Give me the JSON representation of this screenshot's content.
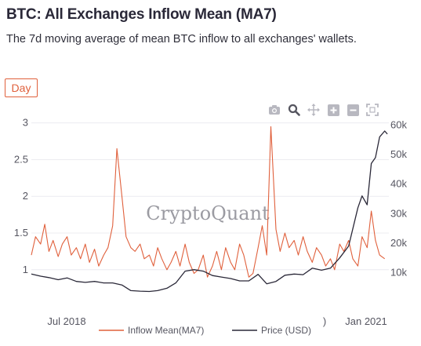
{
  "header": {
    "title": "BTC: All Exchanges Inflow Mean (MA7)",
    "subtitle": "The 7d moving average of mean BTC inflow to all exchanges' wallets."
  },
  "controls": {
    "interval_label": "Day"
  },
  "toolbar": {
    "icons": [
      "camera-icon",
      "zoom-icon",
      "pan-icon",
      "zoom-in-icon",
      "zoom-out-icon",
      "autoscale-icon"
    ]
  },
  "watermark": "CryptoQuant",
  "colors": {
    "inflow": "#e0603c",
    "price": "#2a2838",
    "accent": "#e0603c"
  },
  "chart_data": {
    "type": "line",
    "x_tick_labels": [
      "Jul 2018",
      "Jan 2021"
    ],
    "x_tick_partial": ")",
    "y_left": {
      "ticks": [
        1,
        1.5,
        2,
        2.5,
        3
      ],
      "tick_labels": [
        "1",
        "1.5",
        "2",
        "2.5",
        "3"
      ],
      "range": [
        0.72,
        3.05
      ]
    },
    "y_right": {
      "ticks": [
        10000,
        20000,
        30000,
        40000,
        50000,
        60000
      ],
      "tick_labels": [
        "10k",
        "20k",
        "30k",
        "40k",
        "50k",
        "60k"
      ],
      "range": [
        4000,
        62000
      ]
    },
    "x_range": [
      "2018-01-01",
      "2021-04-15"
    ],
    "legend_position": "bottom",
    "grid": true,
    "series": [
      {
        "name": "Inflow Mean(MA7)",
        "axis": "left",
        "color": "#e0603c",
        "x": [
          "2018-01-01",
          "2018-01-15",
          "2018-02-01",
          "2018-02-15",
          "2018-03-01",
          "2018-03-15",
          "2018-04-01",
          "2018-04-15",
          "2018-05-01",
          "2018-05-15",
          "2018-06-01",
          "2018-06-15",
          "2018-07-01",
          "2018-07-15",
          "2018-08-01",
          "2018-08-15",
          "2018-09-01",
          "2018-09-15",
          "2018-10-01",
          "2018-10-15",
          "2018-11-01",
          "2018-11-15",
          "2018-12-01",
          "2018-12-15",
          "2019-01-01",
          "2019-01-15",
          "2019-02-01",
          "2019-02-15",
          "2019-03-01",
          "2019-03-15",
          "2019-04-01",
          "2019-04-15",
          "2019-05-01",
          "2019-05-15",
          "2019-06-01",
          "2019-06-15",
          "2019-07-01",
          "2019-07-15",
          "2019-08-01",
          "2019-08-15",
          "2019-09-01",
          "2019-09-15",
          "2019-10-01",
          "2019-10-15",
          "2019-11-01",
          "2019-11-15",
          "2019-12-01",
          "2019-12-15",
          "2020-01-01",
          "2020-01-15",
          "2020-02-01",
          "2020-02-15",
          "2020-03-01",
          "2020-03-15",
          "2020-04-01",
          "2020-04-15",
          "2020-05-01",
          "2020-05-15",
          "2020-06-01",
          "2020-06-15",
          "2020-07-01",
          "2020-07-15",
          "2020-08-01",
          "2020-08-15",
          "2020-09-01",
          "2020-09-15",
          "2020-10-01",
          "2020-10-15",
          "2020-11-01",
          "2020-11-15",
          "2020-12-01",
          "2020-12-15",
          "2021-01-01",
          "2021-01-15",
          "2021-02-01",
          "2021-02-15",
          "2021-03-01",
          "2021-03-15",
          "2021-04-01"
        ],
        "values": [
          1.2,
          1.45,
          1.35,
          1.62,
          1.25,
          1.4,
          1.18,
          1.35,
          1.45,
          1.2,
          1.3,
          1.15,
          1.35,
          1.1,
          1.28,
          1.05,
          1.2,
          1.3,
          1.6,
          2.65,
          2.0,
          1.45,
          1.3,
          1.25,
          1.35,
          1.15,
          1.2,
          1.05,
          1.3,
          1.15,
          1.0,
          1.1,
          1.25,
          1.05,
          1.35,
          1.1,
          0.95,
          1.0,
          1.2,
          0.9,
          1.05,
          1.25,
          1.0,
          1.3,
          1.1,
          1.0,
          1.35,
          1.2,
          0.9,
          0.95,
          1.3,
          1.6,
          1.2,
          2.95,
          1.55,
          1.25,
          1.5,
          1.3,
          1.4,
          1.2,
          1.45,
          1.25,
          1.1,
          1.3,
          1.2,
          1.05,
          1.15,
          1.0,
          1.35,
          1.25,
          1.4,
          1.15,
          1.05,
          1.45,
          1.3,
          1.8,
          1.4,
          1.2,
          1.15
        ]
      },
      {
        "name": "Price (USD)",
        "axis": "right",
        "color": "#2a2838",
        "x": [
          "2018-01-01",
          "2018-02-01",
          "2018-03-01",
          "2018-04-01",
          "2018-05-01",
          "2018-06-01",
          "2018-07-01",
          "2018-08-01",
          "2018-09-01",
          "2018-10-01",
          "2018-11-01",
          "2018-12-01",
          "2019-01-01",
          "2019-02-01",
          "2019-03-01",
          "2019-04-01",
          "2019-05-01",
          "2019-06-01",
          "2019-07-01",
          "2019-08-01",
          "2019-09-01",
          "2019-10-01",
          "2019-11-01",
          "2019-12-01",
          "2020-01-01",
          "2020-02-01",
          "2020-03-01",
          "2020-04-01",
          "2020-05-01",
          "2020-06-01",
          "2020-07-01",
          "2020-08-01",
          "2020-09-01",
          "2020-10-01",
          "2020-11-01",
          "2020-12-01",
          "2021-01-01",
          "2021-01-15",
          "2021-02-01",
          "2021-02-15",
          "2021-03-01",
          "2021-03-15",
          "2021-04-01",
          "2021-04-10"
        ],
        "values": [
          9500,
          8800,
          8300,
          7600,
          8200,
          7000,
          6700,
          7000,
          6500,
          6500,
          5800,
          3900,
          3700,
          3600,
          3900,
          4700,
          6500,
          10500,
          11000,
          10500,
          9000,
          8500,
          8000,
          7200,
          7200,
          9400,
          6200,
          7000,
          9100,
          9500,
          9300,
          11500,
          10800,
          11500,
          15000,
          19000,
          32000,
          36000,
          33000,
          47000,
          49000,
          56000,
          58000,
          57000
        ]
      }
    ]
  },
  "legend": {
    "items": [
      "Inflow Mean(MA7)",
      "Price (USD)"
    ]
  }
}
